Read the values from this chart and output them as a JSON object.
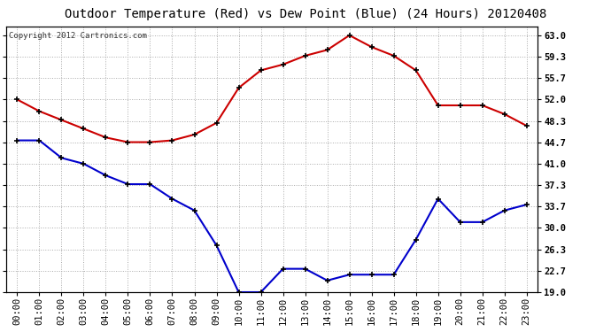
{
  "title": "Outdoor Temperature (Red) vs Dew Point (Blue) (24 Hours) 20120408",
  "copyright_text": "Copyright 2012 Cartronics.com",
  "hours": [
    0,
    1,
    2,
    3,
    4,
    5,
    6,
    7,
    8,
    9,
    10,
    11,
    12,
    13,
    14,
    15,
    16,
    17,
    18,
    19,
    20,
    21,
    22,
    23
  ],
  "hour_labels": [
    "00:00",
    "01:00",
    "02:00",
    "03:00",
    "04:00",
    "05:00",
    "06:00",
    "07:00",
    "08:00",
    "09:00",
    "10:00",
    "11:00",
    "12:00",
    "13:00",
    "14:00",
    "15:00",
    "16:00",
    "17:00",
    "18:00",
    "19:00",
    "20:00",
    "21:00",
    "22:00",
    "23:00"
  ],
  "temp_red": [
    52.0,
    50.0,
    48.5,
    47.0,
    45.5,
    44.7,
    44.7,
    45.0,
    46.0,
    48.0,
    54.0,
    57.0,
    58.0,
    59.5,
    60.5,
    63.0,
    61.0,
    59.5,
    57.0,
    51.0,
    51.0,
    51.0,
    49.5,
    47.5
  ],
  "dew_blue": [
    45.0,
    45.0,
    42.0,
    41.0,
    39.0,
    37.5,
    37.5,
    35.0,
    33.0,
    27.0,
    19.0,
    19.0,
    23.0,
    23.0,
    21.0,
    22.0,
    22.0,
    22.0,
    28.0,
    35.0,
    31.0,
    31.0,
    33.0,
    34.0
  ],
  "red_color": "#cc0000",
  "blue_color": "#0000cc",
  "marker_color": "#000000",
  "grid_color": "#aaaaaa",
  "bg_color": "#ffffff",
  "plot_bg_color": "#ffffff",
  "ytick_labels": [
    "19.0",
    "22.7",
    "26.3",
    "30.0",
    "33.7",
    "37.3",
    "41.0",
    "44.7",
    "48.3",
    "52.0",
    "55.7",
    "59.3",
    "63.0"
  ],
  "yticks": [
    19.0,
    22.7,
    26.3,
    30.0,
    33.7,
    37.3,
    41.0,
    44.7,
    48.3,
    52.0,
    55.7,
    59.3,
    63.0
  ],
  "ylim": [
    19.0,
    64.5
  ],
  "title_fontsize": 10,
  "tick_fontsize": 7.5,
  "copyright_fontsize": 6.5,
  "line_width": 1.5,
  "marker_size": 5
}
